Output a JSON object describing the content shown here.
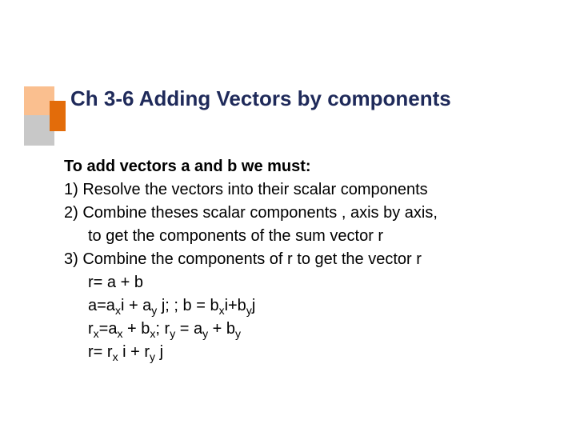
{
  "colors": {
    "title_color": "#1f2a5a",
    "body_color": "#000000",
    "deco_orange_light": "#fabf8f",
    "deco_orange_dark": "#e36c0a",
    "deco_gray": "#c8c8c8",
    "background": "#ffffff"
  },
  "typography": {
    "font_family": "Comic Sans MS",
    "title_fontsize": 26,
    "body_fontsize": 20,
    "title_weight": "bold",
    "lead_weight": "bold"
  },
  "title": "Ch 3-6 Adding Vectors by components",
  "lead": "To add vectors a and b we must:",
  "items": [
    "1) Resolve the vectors into their scalar components",
    "2) Combine theses scalar components , axis by axis,",
    "to get the components of the sum vector r",
    "3) Combine the components of r to get the vector r"
  ],
  "formulas": {
    "f1_pre": "r= a + b",
    "f2": {
      "pre1": "a=a",
      "s1": "x",
      "mid1": "i + a",
      "s2": "y",
      "mid2": " j; ;  b = b",
      "s3": "x",
      "mid3": "i+b",
      "s4": "y",
      "post": "j"
    },
    "f3": {
      "pre1": "r",
      "s1": "x",
      "mid1": "=a",
      "s2": "x",
      "mid2": " + b",
      "s3": "x",
      "mid3": "; r",
      "s4": "y",
      "mid4": " = a",
      "s5": "y",
      "mid5": " + b",
      "s6": "y"
    },
    "f4": {
      "pre1": "r= r",
      "s1": "x",
      "mid1": " i + r",
      "s2": "y",
      "post": " j"
    }
  }
}
